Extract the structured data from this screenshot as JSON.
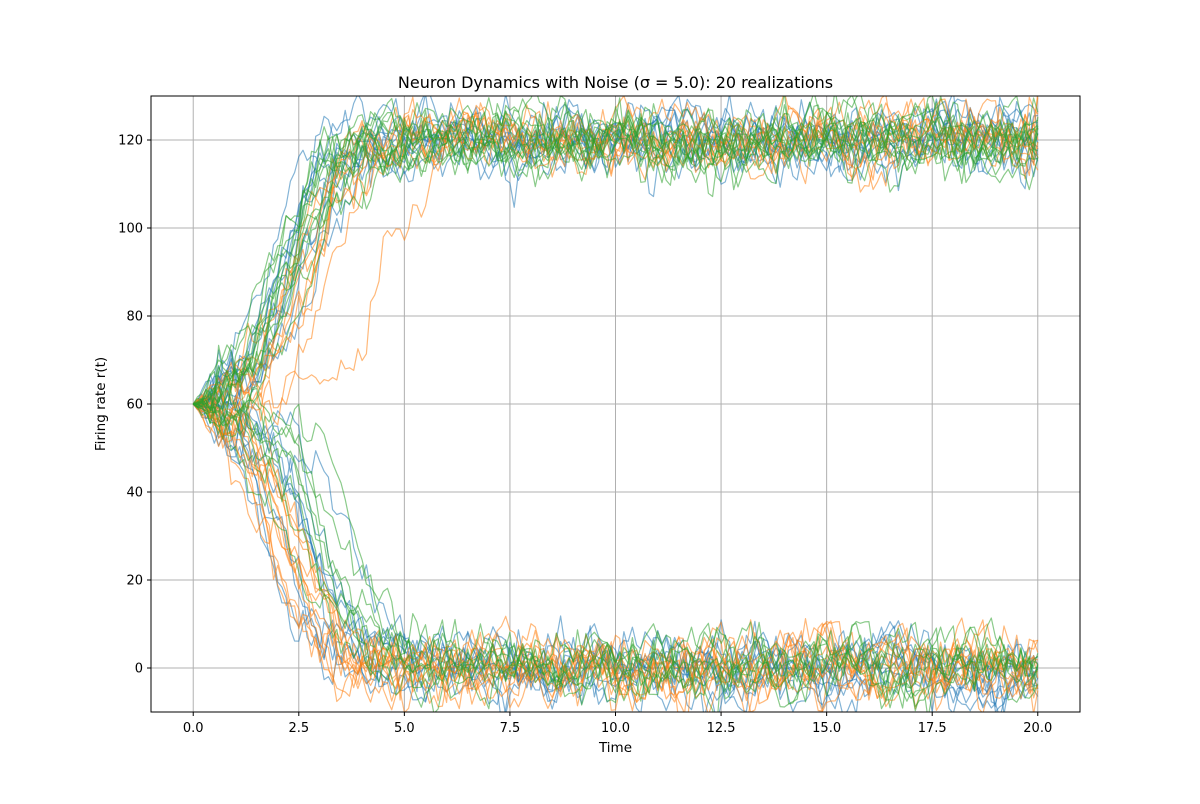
{
  "chart_data": {
    "type": "line",
    "title": "Neuron Dynamics with Noise (σ = 5.0): 20 realizations",
    "xlabel": "Time",
    "ylabel": "Firing rate r(t)",
    "xlim": [
      -1.0,
      21.0
    ],
    "ylim": [
      -10,
      130
    ],
    "xticks": [
      0.0,
      2.5,
      5.0,
      7.5,
      10.0,
      12.5,
      15.0,
      17.5,
      20.0
    ],
    "xtick_labels": [
      "0.0",
      "2.5",
      "5.0",
      "7.5",
      "10.0",
      "12.5",
      "15.0",
      "17.5",
      "20.0"
    ],
    "yticks": [
      0,
      20,
      40,
      60,
      80,
      100,
      120
    ],
    "ytick_labels": [
      "0",
      "20",
      "40",
      "60",
      "80",
      "100",
      "120"
    ],
    "grid": true,
    "legend": "none",
    "initial_value": 60,
    "noise_sigma": 5.0,
    "t_end": 20.0,
    "upper_attractor": 120,
    "lower_attractor": 0,
    "groups": [
      {
        "color": "#1f77b4",
        "count": 20,
        "outcomes": [
          "high",
          "low",
          "high",
          "low",
          "high",
          "high",
          "low",
          "high",
          "low",
          "high",
          "low",
          "high",
          "low",
          "high",
          "low",
          "low",
          "high",
          "low",
          "high",
          "low"
        ],
        "switch_times": [
          2.0,
          1.6,
          2.4,
          1.9,
          2.7,
          2.2,
          2.3,
          1.8,
          2.9,
          2.5,
          3.0,
          2.0,
          3.6,
          2.3,
          2.1,
          2.6,
          2.9,
          1.7,
          1.9,
          2.8
        ]
      },
      {
        "color": "#ff7f0e",
        "count": 20,
        "outcomes": [
          "high",
          "low",
          "low",
          "high",
          "low",
          "high",
          "low",
          "high",
          "low",
          "low",
          "high",
          "low",
          "high",
          "low",
          "high",
          "low",
          "low",
          "high",
          "low",
          "high"
        ],
        "switch_times": [
          2.4,
          1.8,
          2.0,
          2.7,
          2.2,
          4.5,
          1.9,
          2.6,
          2.3,
          2.1,
          2.8,
          2.4,
          2.9,
          2.0,
          3.1,
          2.5,
          1.7,
          2.2,
          2.6,
          3.0
        ]
      },
      {
        "color": "#2ca02c",
        "count": 20,
        "outcomes": [
          "high",
          "high",
          "low",
          "high",
          "low",
          "high",
          "high",
          "low",
          "high",
          "low",
          "high",
          "low",
          "high",
          "high",
          "low",
          "high",
          "low",
          "high",
          "low",
          "high"
        ],
        "switch_times": [
          1.8,
          2.1,
          2.9,
          2.3,
          3.4,
          1.6,
          2.6,
          3.1,
          2.0,
          2.5,
          2.2,
          3.8,
          2.4,
          1.9,
          2.7,
          2.8,
          3.2,
          2.1,
          2.0,
          2.5
        ]
      }
    ]
  }
}
